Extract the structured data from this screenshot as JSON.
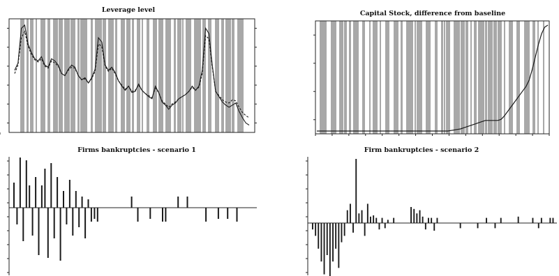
{
  "colors": {
    "background": "#ffffff",
    "shade": "#a8a8a8",
    "line": "#1a1a1a"
  },
  "chart_data": [
    {
      "type": "line",
      "title": "Leverage level",
      "shaded_regions": true,
      "series": [
        {
          "style": "solid",
          "values": [
            0.55,
            0.62,
            0.95,
            0.98,
            0.8,
            0.72,
            0.66,
            0.64,
            0.68,
            0.6,
            0.58,
            0.66,
            0.64,
            0.6,
            0.52,
            0.5,
            0.56,
            0.6,
            0.58,
            0.5,
            0.46,
            0.48,
            0.43,
            0.48,
            0.56,
            0.86,
            0.82,
            0.6,
            0.55,
            0.58,
            0.53,
            0.45,
            0.4,
            0.36,
            0.4,
            0.34,
            0.35,
            0.42,
            0.36,
            0.33,
            0.3,
            0.28,
            0.4,
            0.34,
            0.25,
            0.22,
            0.18,
            0.22,
            0.24,
            0.28,
            0.3,
            0.32,
            0.35,
            0.4,
            0.36,
            0.4,
            0.55,
            0.95,
            0.9,
            0.6,
            0.35,
            0.3,
            0.25,
            0.22,
            0.2,
            0.22,
            0.24,
            0.16,
            0.1,
            0.05,
            0.03
          ]
        },
        {
          "style": "dashed",
          "values": [
            0.52,
            0.6,
            0.86,
            0.92,
            0.78,
            0.7,
            0.65,
            0.63,
            0.66,
            0.59,
            0.57,
            0.64,
            0.62,
            0.59,
            0.52,
            0.5,
            0.55,
            0.58,
            0.57,
            0.5,
            0.46,
            0.47,
            0.43,
            0.47,
            0.54,
            0.8,
            0.78,
            0.59,
            0.54,
            0.57,
            0.52,
            0.45,
            0.41,
            0.37,
            0.4,
            0.35,
            0.36,
            0.41,
            0.36,
            0.33,
            0.31,
            0.29,
            0.38,
            0.34,
            0.26,
            0.23,
            0.2,
            0.23,
            0.25,
            0.28,
            0.3,
            0.32,
            0.35,
            0.39,
            0.36,
            0.39,
            0.52,
            0.88,
            0.85,
            0.58,
            0.35,
            0.31,
            0.27,
            0.25,
            0.24,
            0.27,
            0.26,
            0.2,
            0.15,
            0.12,
            0.1
          ]
        }
      ]
    },
    {
      "type": "line",
      "title": "Capital Stock, difference from baseline",
      "shaded_regions": true,
      "series": [
        {
          "style": "solid",
          "values": [
            0,
            0,
            0,
            0,
            0,
            0,
            0,
            0,
            0,
            0,
            0,
            0,
            0,
            0,
            0,
            0,
            0,
            0,
            0,
            0,
            0,
            0,
            0,
            0,
            0,
            0,
            0,
            0,
            0,
            0,
            0,
            0,
            0,
            0,
            0,
            0,
            0,
            0,
            0,
            0,
            0,
            0,
            0,
            0.005,
            0.01,
            0.015,
            0.02,
            0.03,
            0.04,
            0.05,
            0.06,
            0.07,
            0.08,
            0.09,
            0.1,
            0.1,
            0.1,
            0.1,
            0.1,
            0.11,
            0.14,
            0.18,
            0.22,
            0.26,
            0.3,
            0.34,
            0.38,
            0.42,
            0.48,
            0.58,
            0.7,
            0.82,
            0.92,
            0.98,
            1.0
          ]
        }
      ]
    },
    {
      "type": "bar",
      "title": "Firms bankruptcies - scenario 1",
      "values": [
        0.45,
        -0.3,
        0.9,
        -0.6,
        0.85,
        0.4,
        -0.5,
        0.55,
        -0.85,
        0.4,
        0.7,
        -0.9,
        0.8,
        -0.55,
        0.55,
        -0.95,
        0.3,
        -0.3,
        0.5,
        -0.5,
        0.3,
        -0.35,
        0.2,
        -0.55,
        0.15,
        -0.25,
        -0.2,
        -0.25,
        0,
        0,
        0,
        0,
        0,
        0,
        0,
        0,
        0,
        0,
        0.2,
        0,
        -0.25,
        0,
        0,
        0,
        -0.2,
        0,
        0,
        0,
        -0.25,
        -0.25,
        0,
        0,
        0,
        0.2,
        0,
        0,
        0.2,
        0,
        0,
        0,
        0,
        0,
        -0.25,
        0,
        0,
        0,
        -0.2,
        0,
        0,
        -0.2,
        0,
        0,
        -0.25,
        0,
        0,
        0,
        0,
        0,
        0,
        0
      ]
    },
    {
      "type": "bar",
      "title": "Firm bankruptcies - scenario 2",
      "values": [
        -0.1,
        -0.2,
        -0.4,
        -0.6,
        -0.8,
        -0.5,
        -0.95,
        -0.6,
        -0.4,
        -0.7,
        -0.3,
        -0.2,
        0.2,
        0.3,
        -0.15,
        1.0,
        0.15,
        0.2,
        -0.2,
        0.3,
        0.1,
        0.12,
        0.08,
        -0.1,
        0.08,
        -0.08,
        0.05,
        0,
        0.08,
        0,
        0,
        0,
        0,
        0,
        0.25,
        0.22,
        0.15,
        0.2,
        0.1,
        -0.1,
        0.08,
        0.08,
        -0.12,
        0.08,
        0,
        0,
        0,
        0,
        0,
        0,
        0,
        -0.08,
        0,
        0,
        0,
        0,
        0,
        -0.08,
        0,
        0,
        0.08,
        0,
        0,
        -0.08,
        0,
        0.08,
        0,
        0,
        0,
        0,
        0,
        0.1,
        0,
        0,
        0,
        0,
        0.08,
        0,
        -0.08,
        0.08,
        0,
        0,
        0.08,
        0.08,
        0,
        0
      ]
    }
  ]
}
